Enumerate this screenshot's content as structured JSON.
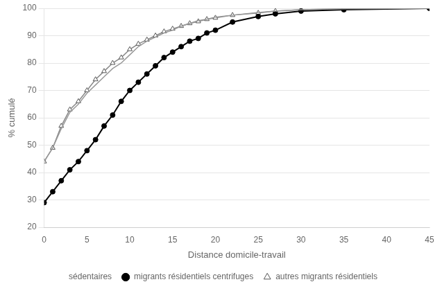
{
  "chart_data": {
    "type": "line",
    "xlabel": "Distance domicile-travail",
    "ylabel": "% cumulé",
    "x": [
      0,
      1,
      2,
      3,
      4,
      5,
      6,
      7,
      8,
      9,
      10,
      11,
      12,
      13,
      14,
      15,
      16,
      17,
      18,
      19,
      20,
      22,
      25,
      27,
      30,
      35,
      45
    ],
    "xlim": [
      0,
      45
    ],
    "ylim": [
      20,
      100
    ],
    "xticks": [
      0,
      5,
      10,
      15,
      20,
      25,
      30,
      35,
      40,
      45
    ],
    "yticks": [
      20,
      30,
      40,
      50,
      60,
      70,
      80,
      90,
      100
    ],
    "grid": "y",
    "legend": "bottom",
    "series": [
      {
        "name": "sédentaires",
        "color": "#999999",
        "marker": "none",
        "line_style": "solid",
        "values": [
          44,
          49,
          56,
          62,
          65,
          69,
          72,
          75,
          78,
          80,
          83,
          86,
          88,
          89.5,
          91,
          92,
          93.5,
          94.5,
          95.5,
          96,
          96.8,
          97.5,
          98.5,
          99,
          99.5,
          99.8,
          100
        ]
      },
      {
        "name": "migrants résidentiels centrifuges",
        "color": "#000000",
        "marker": "circle",
        "line_style": "solid",
        "values": [
          29,
          33,
          37,
          41,
          44,
          48,
          52,
          57,
          61,
          66,
          70,
          73,
          76,
          79,
          82,
          84,
          86,
          88,
          89,
          91,
          92,
          95,
          97,
          98,
          99,
          99.5,
          100
        ]
      },
      {
        "name": "autres migrants résidentiels",
        "color": "#888888",
        "marker": "triangle",
        "line_style": "solid",
        "values": [
          44,
          49,
          57,
          63,
          66,
          70,
          74,
          77,
          80,
          82,
          85,
          87,
          88.5,
          90,
          91.5,
          92.5,
          93.5,
          94.5,
          95.2,
          96,
          96.5,
          97.5,
          98.3,
          99,
          99.5,
          99.8,
          100
        ]
      }
    ]
  }
}
